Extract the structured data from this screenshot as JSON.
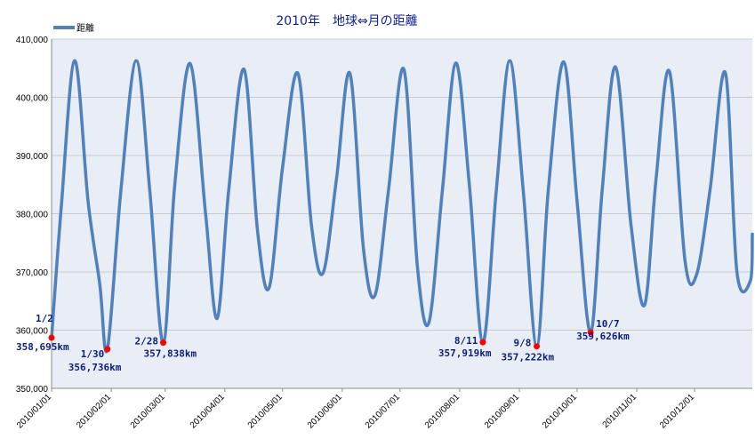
{
  "title": "2010年　地球⇔月の距離",
  "legend": "距離",
  "colors": {
    "line": "#4f81bd",
    "plot_bg": "#e9eef6",
    "grid": "#c9c9c9",
    "marker": "#ff0000",
    "annotation": "#0b1f7a",
    "title": "#0b1f9a"
  },
  "chart_data": {
    "type": "line",
    "title": "2010年　地球⇔月の距離",
    "xlabel": "",
    "ylabel": "",
    "ylim": [
      350000,
      410000
    ],
    "yticks": [
      350000,
      360000,
      370000,
      380000,
      390000,
      400000,
      410000
    ],
    "ytick_labels": [
      "350,000",
      "360,000",
      "370,000",
      "380,000",
      "390,000",
      "400,000",
      "410,000"
    ],
    "xlim": [
      0,
      364
    ],
    "xticks": [
      0,
      31,
      59,
      90,
      120,
      151,
      181,
      212,
      243,
      273,
      304,
      334
    ],
    "xtick_labels": [
      "2010/01/01",
      "2010/02/01",
      "2010/03/01",
      "2010/04/01",
      "2010/05/01",
      "2010/06/01",
      "2010/07/01",
      "2010/08/01",
      "2010/09/01",
      "2010/10/01",
      "2010/11/01",
      "2010/12/01"
    ],
    "grid": true,
    "series": [
      {
        "name": "距離",
        "x": [
          0,
          5,
          12,
          19,
          25,
          29,
          36,
          44,
          51,
          58,
          64,
          72,
          80,
          86,
          92,
          100,
          107,
          113,
          120,
          128,
          135,
          141,
          148,
          155,
          162,
          168,
          175,
          183,
          190,
          196,
          203,
          210,
          217,
          224,
          231,
          238,
          245,
          252,
          258,
          266,
          273,
          280,
          286,
          293,
          301,
          308,
          314,
          321,
          329,
          335,
          342,
          350,
          356,
          363,
          364
        ],
        "y": [
          358695,
          381000,
          406300,
          382000,
          368000,
          356736,
          384000,
          406300,
          384000,
          357838,
          385000,
          405800,
          380000,
          362000,
          384000,
          404800,
          377000,
          367300,
          388000,
          404100,
          378000,
          369800,
          386000,
          404100,
          374000,
          366000,
          384000,
          404800,
          371000,
          361300,
          384000,
          405900,
          385000,
          357919,
          384000,
          406300,
          384000,
          357222,
          384000,
          406100,
          382000,
          359626,
          384000,
          405200,
          378000,
          364300,
          386000,
          404400,
          372000,
          369500,
          384000,
          404200,
          370000,
          368500,
          376500
        ]
      }
    ],
    "annotations": [
      {
        "x": 0,
        "y": 358695,
        "date": "1/2",
        "value": "358,695km"
      },
      {
        "x": 29,
        "y": 356736,
        "date": "1/30",
        "value": "356,736km"
      },
      {
        "x": 58,
        "y": 357838,
        "date": "2/28",
        "value": "357,838km"
      },
      {
        "x": 224,
        "y": 357919,
        "date": "8/11",
        "value": "357,919km"
      },
      {
        "x": 252,
        "y": 357222,
        "date": "9/8",
        "value": "357,222km"
      },
      {
        "x": 280,
        "y": 359626,
        "date": "10/7",
        "value": "359,626km"
      }
    ]
  }
}
